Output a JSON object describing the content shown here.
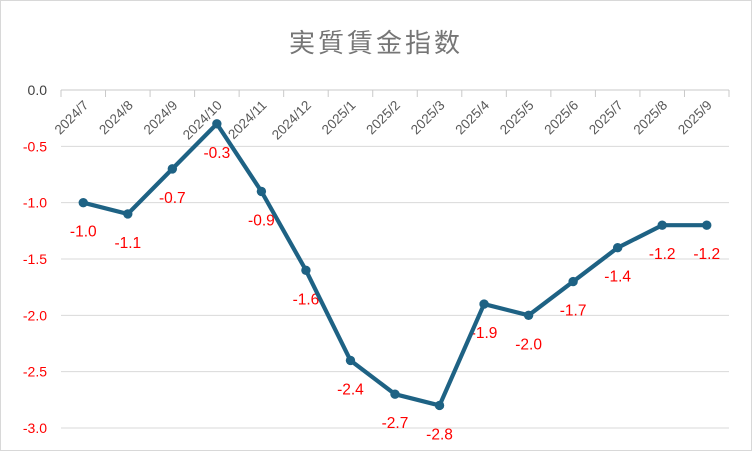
{
  "chart_data": {
    "type": "line",
    "title": "実質賃金指数",
    "categories": [
      "2024/7",
      "2024/8",
      "2024/9",
      "2024/10",
      "2024/11",
      "2024/12",
      "2025/1",
      "2025/2",
      "2025/3",
      "2025/4",
      "2025/5",
      "2025/6",
      "2025/7",
      "2025/8",
      "2025/9"
    ],
    "series": [
      {
        "name": "実質賃金指数",
        "values": [
          -1.0,
          -1.1,
          -0.7,
          -0.3,
          -0.9,
          -1.6,
          -2.4,
          -2.7,
          -2.8,
          -1.9,
          -2.0,
          -1.7,
          -1.4,
          -1.2,
          -1.2
        ]
      }
    ],
    "data_labels": [
      "-1.0",
      "-1.1",
      "-0.7",
      "-0.3",
      "-0.9",
      "-1.6",
      "-2.4",
      "-2.7",
      "-2.8",
      "-1.9",
      "-2.0",
      "-1.7",
      "-1.4",
      "-1.2",
      "-1.2"
    ],
    "xlabel": "",
    "ylabel": "",
    "ylim": [
      -3.0,
      0.0
    ],
    "ytick_labels": [
      "0.0",
      "-0.5",
      "-1.0",
      "-1.5",
      "-2.0",
      "-2.5",
      "-3.0"
    ],
    "x_label_rotation_deg": 45,
    "grid": true,
    "legend": "none",
    "colors": {
      "line": "#1e6284",
      "marker": "#1e6284",
      "data_label": "#ff0000",
      "ytick_negative": "#ff0000",
      "ytick_zero": "#404040",
      "xtick_label": "#595959",
      "gridline": "#d9d9d9",
      "axis_line": "#c9c9c9",
      "title": "#767676",
      "background": "#ffffff",
      "frame_border": "#d8d8d8"
    }
  }
}
